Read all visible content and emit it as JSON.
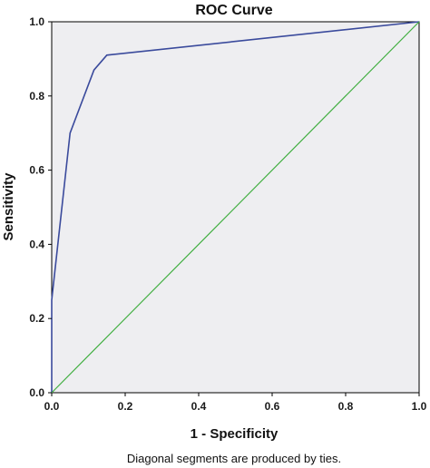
{
  "chart_data": {
    "type": "line",
    "title": "ROC Curve",
    "xlabel": "1 - Specificity",
    "ylabel": "Sensitivity",
    "xlim": [
      0,
      1
    ],
    "ylim": [
      0,
      1
    ],
    "x_ticks": [
      "0.0",
      "0.2",
      "0.4",
      "0.6",
      "0.8",
      "1.0"
    ],
    "y_ticks": [
      "0.0",
      "0.2",
      "0.4",
      "0.6",
      "0.8",
      "1.0"
    ],
    "grid": false,
    "footnote": "Diagonal segments are produced by ties.",
    "series": [
      {
        "color": "#3a4a9c",
        "x": [
          0.0,
          0.0,
          0.05,
          0.115,
          0.15,
          1.0
        ],
        "y": [
          0.0,
          0.25,
          0.7,
          0.87,
          0.91,
          1.0
        ]
      },
      {
        "color": "#3fae3f",
        "x": [
          0.0,
          1.0
        ],
        "y": [
          0.0,
          1.0
        ]
      }
    ]
  },
  "colors": {
    "plot_background": "#eeeef1",
    "frame": "#000000"
  }
}
